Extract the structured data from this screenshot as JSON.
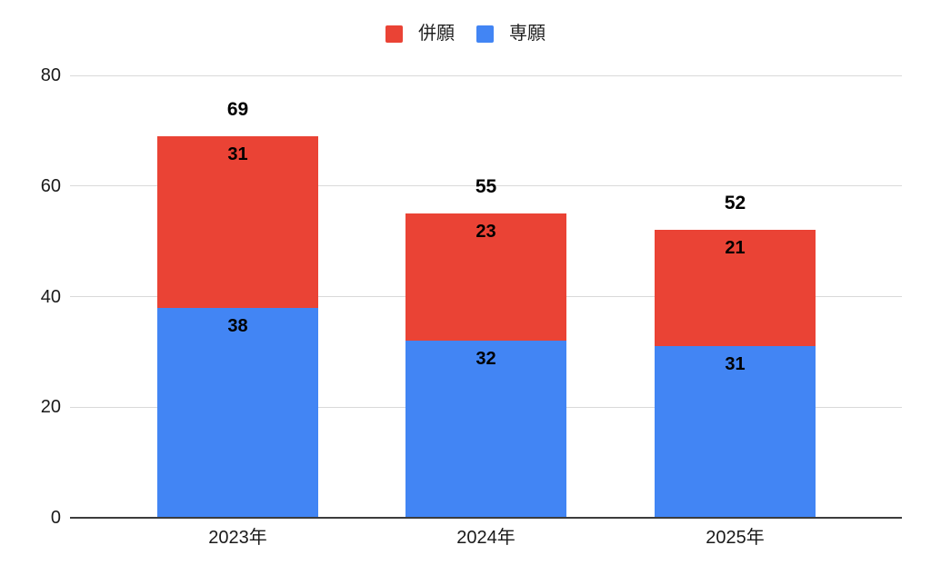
{
  "chart_data": {
    "type": "bar",
    "stacked": true,
    "categories": [
      "2023年",
      "2024年",
      "2025年"
    ],
    "series": [
      {
        "name": "専願",
        "color": "#4285F4",
        "values": [
          38,
          32,
          31
        ]
      },
      {
        "name": "併願",
        "color": "#EA4335",
        "values": [
          31,
          23,
          21
        ]
      }
    ],
    "totals": [
      69,
      55,
      52
    ],
    "legend": {
      "position": "top",
      "items": [
        {
          "label": "併願",
          "color": "#EA4335"
        },
        {
          "label": "専願",
          "color": "#4285F4"
        }
      ]
    },
    "yticks": [
      0,
      20,
      40,
      60,
      80
    ],
    "ylim": [
      0,
      80
    ],
    "grid": true,
    "colors": {
      "background": "#FFFFFF",
      "gridline": "#D9D9D9",
      "axis_line": "#3C3C3C",
      "value_label": "#000000",
      "tick_label": "#1A1A1A"
    }
  }
}
